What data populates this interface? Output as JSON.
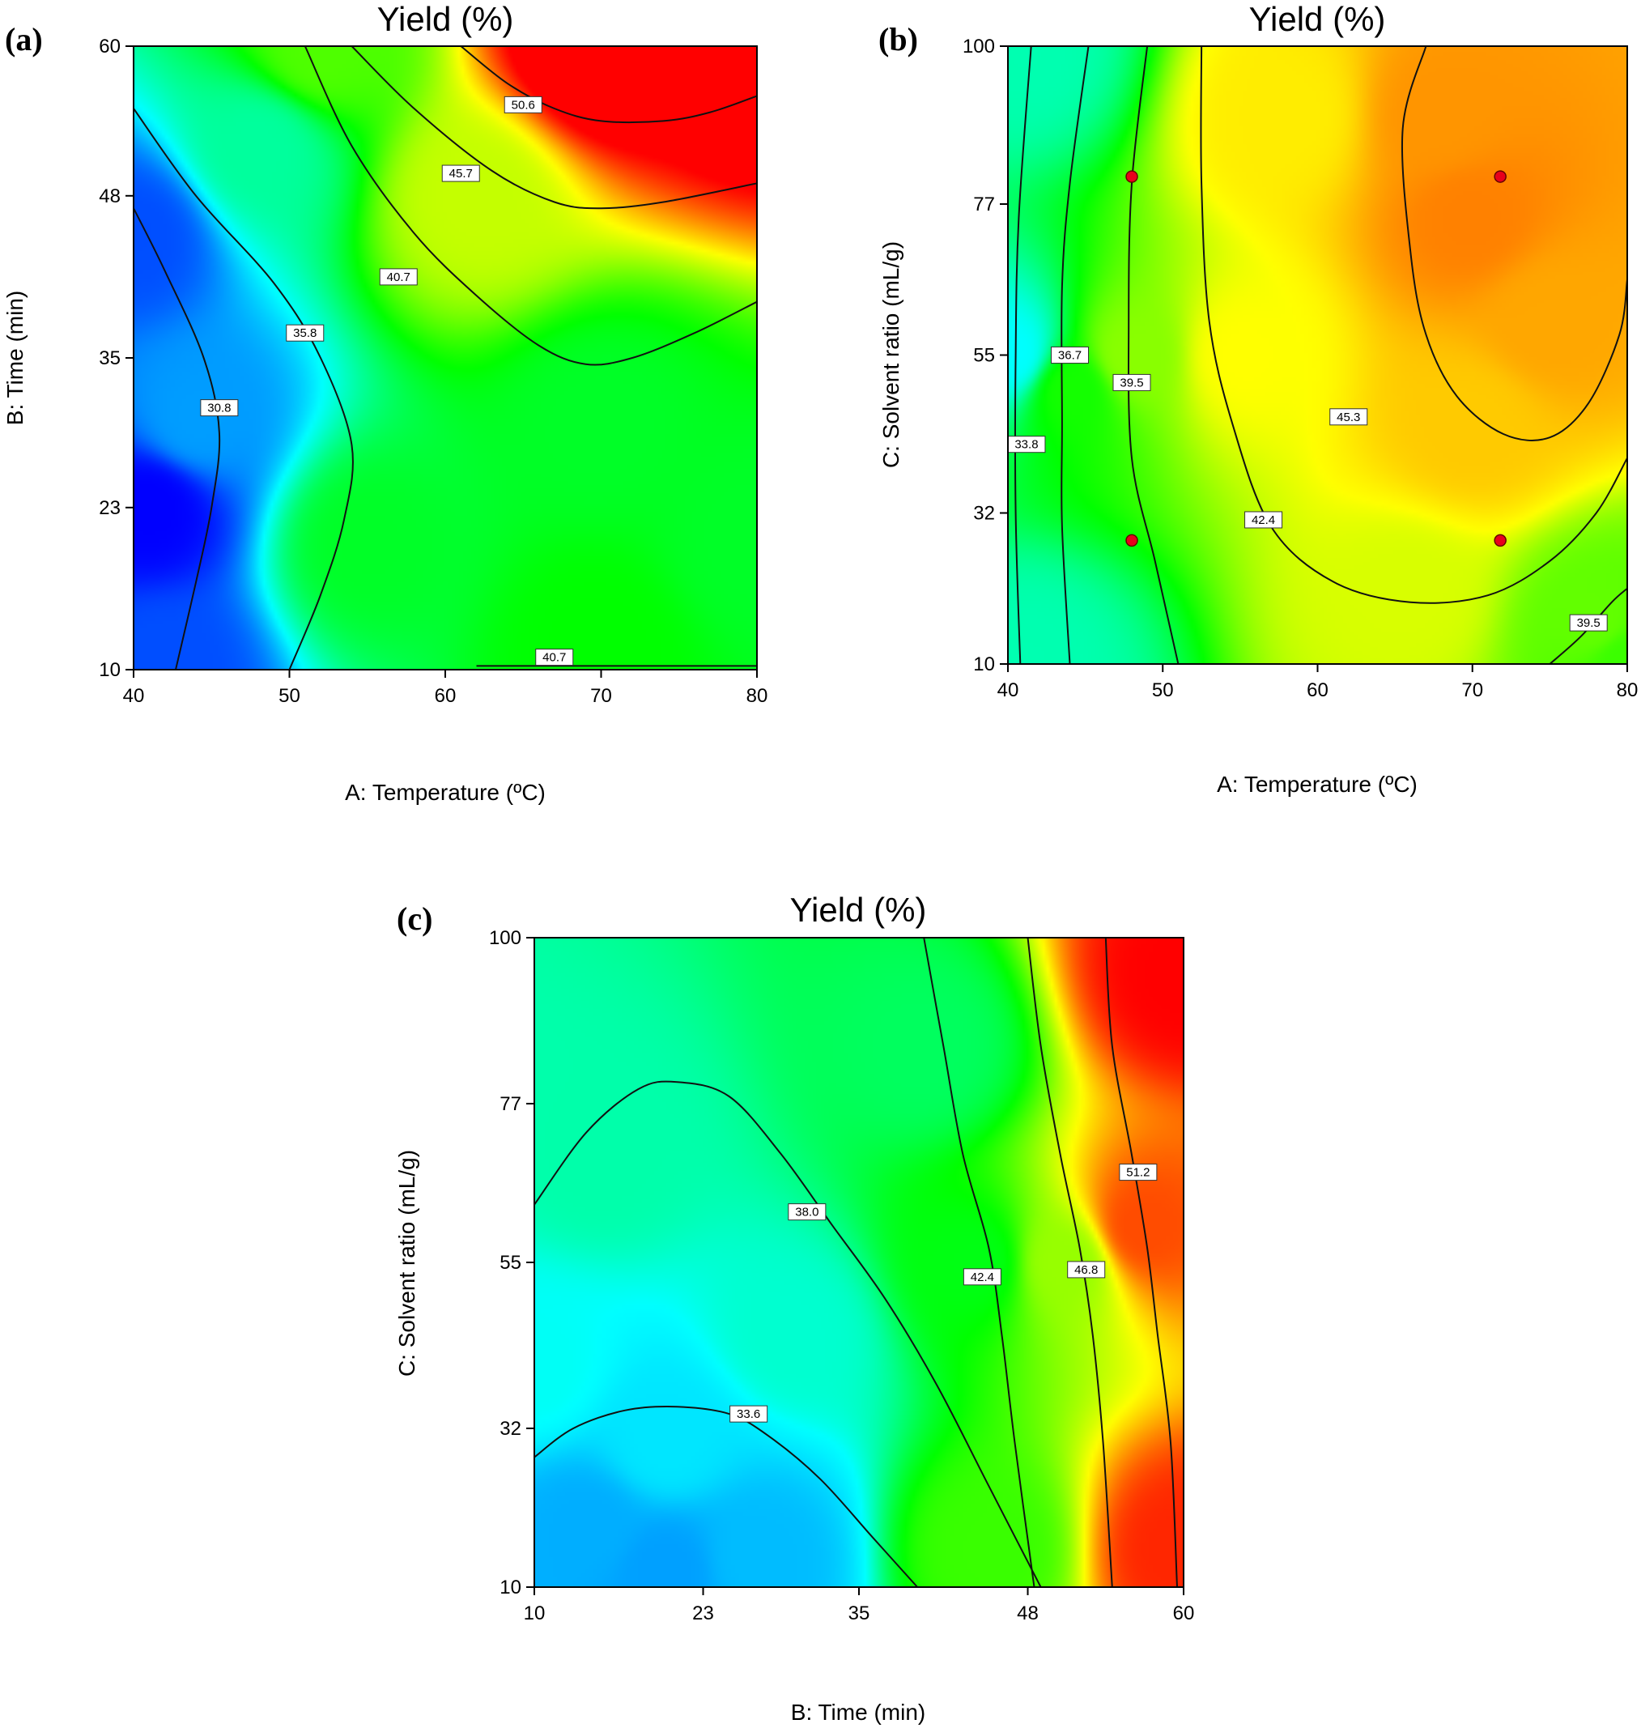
{
  "figure": {
    "title": "Yield (%) contour plots"
  },
  "chart_data": [
    {
      "type": "heatmap",
      "panel": "(a)",
      "title": "Yield (%)",
      "xlabel": "A: Temperature (ºC)",
      "ylabel": "B: Time (min)",
      "xlim": [
        40,
        80
      ],
      "ylim": [
        10,
        60
      ],
      "xticks": [
        40,
        50,
        60,
        70,
        80
      ],
      "yticks": [
        10,
        23,
        35,
        48,
        60
      ],
      "colormap": [
        "#0000ff",
        "#00ffff",
        "#00ff00",
        "#ffff00",
        "#ff0000"
      ],
      "zrange": [
        27,
        53
      ],
      "contours": [
        {
          "label": "30.8",
          "points": [
            [
              40,
              47
            ],
            [
              42,
              42
            ],
            [
              44.5,
              35
            ],
            [
              45.5,
              29
            ],
            [
              45,
              23
            ],
            [
              44,
              17
            ],
            [
              42.7,
              10
            ]
          ],
          "label_at": [
            45.5,
            31
          ]
        },
        {
          "label": "35.8",
          "points": [
            [
              40,
              55
            ],
            [
              44,
              48
            ],
            [
              49,
              41
            ],
            [
              52,
              35
            ],
            [
              54,
              28
            ],
            [
              53.5,
              22
            ],
            [
              52,
              16
            ],
            [
              50,
              10
            ]
          ],
          "label_at": [
            51,
            37
          ]
        },
        {
          "label": "40.7",
          "points": [
            [
              51,
              60
            ],
            [
              54,
              52
            ],
            [
              58,
              45
            ],
            [
              62,
              40
            ],
            [
              66,
              36
            ],
            [
              69,
              34.5
            ],
            [
              72,
              35
            ],
            [
              76,
              37
            ],
            [
              80,
              39.5
            ]
          ],
          "label_at": [
            57,
            41.5
          ]
        },
        {
          "label": "40.7",
          "points": [
            [
              62,
              10.3
            ],
            [
              80,
              10.3
            ]
          ],
          "label_at": [
            67,
            11
          ]
        },
        {
          "label": "45.7",
          "points": [
            [
              54,
              60
            ],
            [
              58,
              55
            ],
            [
              63,
              50
            ],
            [
              67,
              47.5
            ],
            [
              70,
              47
            ],
            [
              74,
              47.5
            ],
            [
              80,
              49
            ]
          ],
          "label_at": [
            61,
            49.8
          ]
        },
        {
          "label": "50.6",
          "points": [
            [
              61,
              60
            ],
            [
              64,
              57
            ],
            [
              67,
              55
            ],
            [
              70,
              54
            ],
            [
              74,
              54
            ],
            [
              77,
              54.7
            ],
            [
              80,
              56
            ]
          ],
          "label_at": [
            65,
            55.3
          ]
        }
      ]
    },
    {
      "type": "heatmap",
      "panel": "(b)",
      "title": "Yield (%)",
      "xlabel": "A: Temperature (ºC)",
      "ylabel": "C: Solvent ratio (mL/g)",
      "xlim": [
        40,
        80
      ],
      "ylim": [
        10,
        100
      ],
      "xticks": [
        40,
        50,
        60,
        70,
        80
      ],
      "yticks": [
        10,
        32,
        55,
        77,
        100
      ],
      "colormap": [
        "#00ffff",
        "#00ff00",
        "#ffff00",
        "#ff8c00",
        "#ff0000"
      ],
      "zrange": [
        30,
        56
      ],
      "contours": [
        {
          "label": "33.8",
          "points": [
            [
              41.5,
              100
            ],
            [
              40.7,
              75
            ],
            [
              40.5,
              55
            ],
            [
              40.5,
              32
            ],
            [
              40.8,
              10
            ]
          ],
          "label_at": [
            41.2,
            42
          ]
        },
        {
          "label": "36.7",
          "points": [
            [
              45.2,
              100
            ],
            [
              44,
              80
            ],
            [
              43.5,
              65
            ],
            [
              43.5,
              45
            ],
            [
              43.5,
              30
            ],
            [
              44,
              10
            ]
          ],
          "label_at": [
            44,
            55
          ]
        },
        {
          "label": "39.5",
          "points": [
            [
              49,
              100
            ],
            [
              48,
              80
            ],
            [
              47.8,
              60
            ],
            [
              48,
              40
            ],
            [
              49.5,
              25
            ],
            [
              51,
              10
            ]
          ],
          "label_at": [
            48,
            51
          ]
        },
        {
          "label": "42.4",
          "points": [
            [
              52.5,
              100
            ],
            [
              52.5,
              80
            ],
            [
              53,
              60
            ],
            [
              54.5,
              45
            ],
            [
              57,
              30
            ],
            [
              61,
              22
            ],
            [
              66,
              19
            ],
            [
              71,
              20
            ],
            [
              75,
              25
            ],
            [
              78,
              32
            ],
            [
              80,
              40
            ]
          ],
          "label_at": [
            56.5,
            31
          ]
        },
        {
          "label": "45.3",
          "points": [
            [
              67,
              100
            ],
            [
              65.5,
              88
            ],
            [
              66,
              70
            ],
            [
              67,
              58
            ],
            [
              69,
              49
            ],
            [
              72,
              43.5
            ],
            [
              75,
              43
            ],
            [
              77.5,
              48
            ],
            [
              79.5,
              58
            ],
            [
              80,
              66
            ]
          ],
          "label_at": [
            62,
            46
          ]
        },
        {
          "label": "39.5",
          "points": [
            [
              75,
              10
            ],
            [
              77,
              14
            ],
            [
              79,
              19
            ],
            [
              80,
              21
            ]
          ],
          "label_at": [
            77.5,
            16
          ]
        }
      ],
      "points": [
        [
          48,
          81
        ],
        [
          71.8,
          81
        ],
        [
          48,
          28
        ],
        [
          71.8,
          28
        ]
      ]
    },
    {
      "type": "heatmap",
      "panel": "(c)",
      "title": "Yield (%)",
      "xlabel": "B: Time (min)",
      "ylabel": "C: Solvent ratio (mL/g)",
      "xlim": [
        10,
        60
      ],
      "ylim": [
        10,
        100
      ],
      "xticks": [
        10,
        23,
        35,
        48,
        60
      ],
      "yticks": [
        10,
        32,
        55,
        77,
        100
      ],
      "colormap": [
        "#00a0ff",
        "#00ffff",
        "#00ff00",
        "#ffff00",
        "#ff0000"
      ],
      "zrange": [
        29,
        56
      ],
      "contours": [
        {
          "label": "33.6",
          "points": [
            [
              10,
              28
            ],
            [
              13,
              32
            ],
            [
              17,
              34.5
            ],
            [
              21,
              35
            ],
            [
              25,
              34
            ],
            [
              28,
              31
            ],
            [
              32,
              25
            ],
            [
              36,
              17
            ],
            [
              39.5,
              10
            ]
          ],
          "label_at": [
            26.5,
            34
          ]
        },
        {
          "label": "38.0",
          "points": [
            [
              10,
              63
            ],
            [
              14,
              73
            ],
            [
              18,
              79
            ],
            [
              21,
              80
            ],
            [
              25,
              78
            ],
            [
              29,
              70
            ],
            [
              33,
              60
            ],
            [
              37,
              50
            ],
            [
              41,
              38
            ],
            [
              45,
              24
            ],
            [
              49,
              10
            ]
          ],
          "label_at": [
            31,
            62
          ]
        },
        {
          "label": "42.4",
          "points": [
            [
              40,
              100
            ],
            [
              41.5,
              85
            ],
            [
              43,
              70
            ],
            [
              45,
              57
            ],
            [
              46,
              45
            ],
            [
              47,
              30
            ],
            [
              48.5,
              10
            ]
          ],
          "label_at": [
            44.5,
            53
          ]
        },
        {
          "label": "46.8",
          "points": [
            [
              48,
              100
            ],
            [
              49,
              85
            ],
            [
              50.5,
              70
            ],
            [
              52,
              57
            ],
            [
              53,
              45
            ],
            [
              53.8,
              30
            ],
            [
              54.5,
              10
            ]
          ],
          "label_at": [
            52.5,
            54
          ]
        },
        {
          "label": "51.2",
          "points": [
            [
              54,
              100
            ],
            [
              54.5,
              85
            ],
            [
              56,
              70
            ],
            [
              57.2,
              57
            ],
            [
              58,
              45
            ],
            [
              59,
              30
            ],
            [
              59.5,
              10
            ]
          ],
          "label_at": [
            56.5,
            67.5
          ]
        }
      ]
    }
  ]
}
